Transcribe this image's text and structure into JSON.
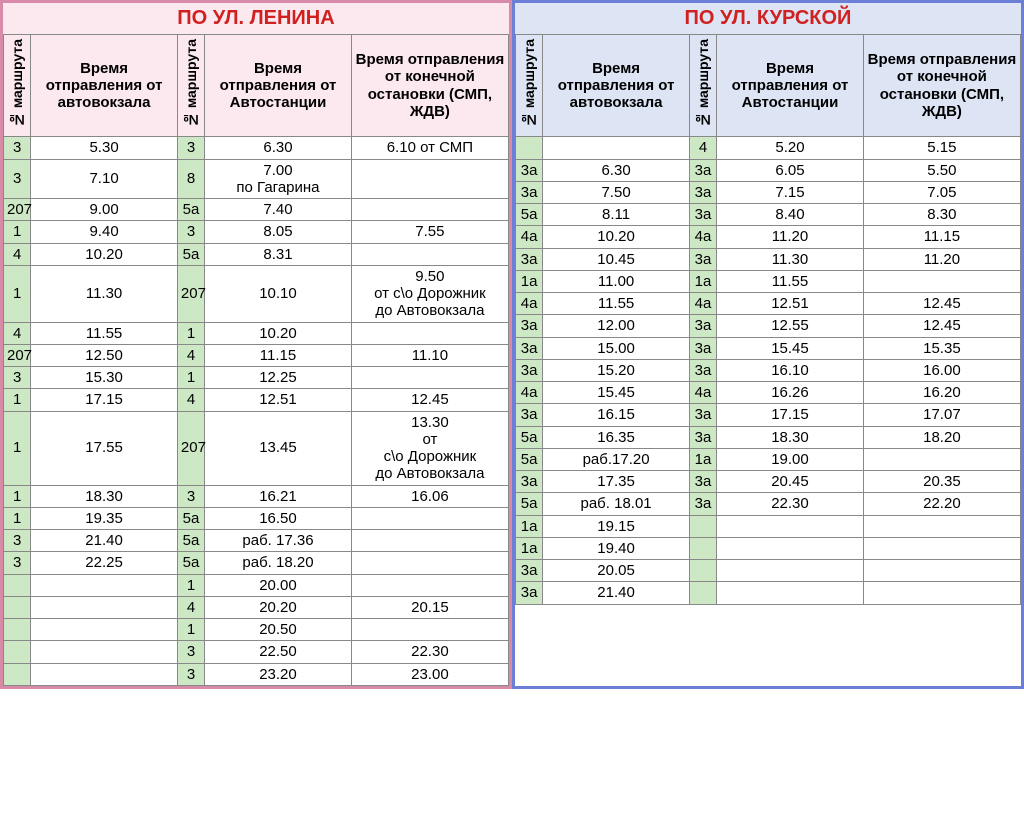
{
  "left": {
    "title": "ПО УЛ. ЛЕНИНА",
    "headers": {
      "route": "№ маршрута",
      "time1": "Время отправления от автовокзала",
      "time2": "Время отправления от Автостанции",
      "final": "Время отправления от конечной остановки (СМП, ЖДВ)"
    },
    "rows": [
      {
        "r1": "3",
        "t1": "5.30",
        "r2": "3",
        "t2": "6.30",
        "f": "6.10 от СМП"
      },
      {
        "r1": "3",
        "t1": "7.10",
        "r2": "8",
        "t2": "7.00\nпо Гагарина",
        "f": ""
      },
      {
        "r1": "207",
        "t1": "9.00",
        "r2": "5а",
        "t2": "7.40",
        "f": ""
      },
      {
        "r1": "1",
        "t1": "9.40",
        "r2": "3",
        "t2": "8.05",
        "f": "7.55"
      },
      {
        "r1": "4",
        "t1": "10.20",
        "r2": "5а",
        "t2": "8.31",
        "f": ""
      },
      {
        "r1": "1",
        "t1": "11.30",
        "r2": "207",
        "t2": "10.10",
        "f": "9.50\nот с\\о Дорожник\nдо Автовокзала"
      },
      {
        "r1": "4",
        "t1": "11.55",
        "r2": "1",
        "t2": "10.20",
        "f": ""
      },
      {
        "r1": "207",
        "t1": "12.50",
        "r2": "4",
        "t2": "11.15",
        "f": "11.10"
      },
      {
        "r1": "3",
        "t1": "15.30",
        "r2": "1",
        "t2": "12.25",
        "f": ""
      },
      {
        "r1": "1",
        "t1": "17.15",
        "r2": "4",
        "t2": "12.51",
        "f": "12.45"
      },
      {
        "r1": "1",
        "t1": "17.55",
        "r2": "207",
        "t2": "13.45",
        "f": "13.30\nот\nс\\о Дорожник\nдо Автовокзала"
      },
      {
        "r1": "1",
        "t1": "18.30",
        "r2": "3",
        "t2": "16.21",
        "f": "16.06"
      },
      {
        "r1": "1",
        "t1": "19.35",
        "r2": "5а",
        "t2": "16.50",
        "f": ""
      },
      {
        "r1": "3",
        "t1": "21.40",
        "r2": "5а",
        "t2": "раб. 17.36",
        "f": ""
      },
      {
        "r1": "3",
        "t1": "22.25",
        "r2": "5а",
        "t2": "раб. 18.20",
        "f": ""
      },
      {
        "r1": "",
        "t1": "",
        "r2": "1",
        "t2": "20.00",
        "f": ""
      },
      {
        "r1": "",
        "t1": "",
        "r2": "4",
        "t2": "20.20",
        "f": "20.15"
      },
      {
        "r1": "",
        "t1": "",
        "r2": "1",
        "t2": "20.50",
        "f": ""
      },
      {
        "r1": "",
        "t1": "",
        "r2": "3",
        "t2": "22.50",
        "f": "22.30"
      },
      {
        "r1": "",
        "t1": "",
        "r2": "3",
        "t2": "23.20",
        "f": "23.00"
      }
    ]
  },
  "right": {
    "title": "ПО УЛ. КУРСКОЙ",
    "headers": {
      "route": "№ маршрута",
      "time1": "Время отправления от автовокзала",
      "time2": "Время отправления от Автостанции",
      "final": "Время отправления от конечной остановки (СМП, ЖДВ)"
    },
    "rows": [
      {
        "r1": "",
        "t1": "",
        "r2": "4",
        "t2": "5.20",
        "f": "5.15"
      },
      {
        "r1": "3а",
        "t1": "6.30",
        "r2": "3а",
        "t2": "6.05",
        "f": "5.50"
      },
      {
        "r1": "3а",
        "t1": "7.50",
        "r2": "3а",
        "t2": "7.15",
        "f": "7.05"
      },
      {
        "r1": "5а",
        "t1": "8.11",
        "r2": "3а",
        "t2": "8.40",
        "f": "8.30"
      },
      {
        "r1": "4а",
        "t1": "10.20",
        "r2": "4а",
        "t2": "11.20",
        "f": "11.15"
      },
      {
        "r1": "3а",
        "t1": "10.45",
        "r2": "3а",
        "t2": "11.30",
        "f": "11.20"
      },
      {
        "r1": "1а",
        "t1": "11.00",
        "r2": "1а",
        "t2": "11.55",
        "f": ""
      },
      {
        "r1": "4а",
        "t1": "11.55",
        "r2": "4а",
        "t2": "12.51",
        "f": "12.45"
      },
      {
        "r1": "3а",
        "t1": "12.00",
        "r2": "3а",
        "t2": "12.55",
        "f": "12.45"
      },
      {
        "r1": "3а",
        "t1": "15.00",
        "r2": "3а",
        "t2": "15.45",
        "f": "15.35"
      },
      {
        "r1": "3а",
        "t1": "15.20",
        "r2": "3а",
        "t2": "16.10",
        "f": "16.00"
      },
      {
        "r1": "4а",
        "t1": "15.45",
        "r2": "4а",
        "t2": "16.26",
        "f": "16.20"
      },
      {
        "r1": "3а",
        "t1": "16.15",
        "r2": "3а",
        "t2": "17.15",
        "f": "17.07"
      },
      {
        "r1": "5а",
        "t1": "16.35",
        "r2": "3а",
        "t2": "18.30",
        "f": "18.20"
      },
      {
        "r1": "5а",
        "t1": "раб.17.20",
        "r2": "1а",
        "t2": "19.00",
        "f": ""
      },
      {
        "r1": "3а",
        "t1": "17.35",
        "r2": "3а",
        "t2": "20.45",
        "f": "20.35"
      },
      {
        "r1": "5а",
        "t1": "раб. 18.01",
        "r2": "3а",
        "t2": "22.30",
        "f": "22.20"
      },
      {
        "r1": "1а",
        "t1": "19.15",
        "r2": "",
        "t2": "",
        "f": ""
      },
      {
        "r1": "1а",
        "t1": "19.40",
        "r2": "",
        "t2": "",
        "f": ""
      },
      {
        "r1": "3а",
        "t1": "20.05",
        "r2": "",
        "t2": "",
        "f": ""
      },
      {
        "r1": "3а",
        "t1": "21.40",
        "r2": "",
        "t2": "",
        "f": ""
      }
    ]
  },
  "colors": {
    "route_cell_bg": "#cde8c4",
    "left_border": "#d88ba8",
    "right_border": "#6b7fd6",
    "left_header_bg": "#fce8ef",
    "right_header_bg": "#dde5f5",
    "title_color": "#d02020"
  }
}
